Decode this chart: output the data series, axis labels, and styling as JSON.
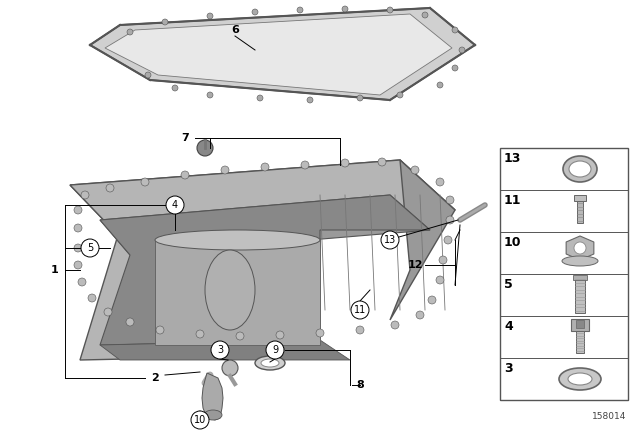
{
  "bg_color": "#ffffff",
  "diagram_id": "158014",
  "sidebar_items": [
    {
      "num": "13",
      "shape": "thin_ring"
    },
    {
      "num": "11",
      "shape": "long_bolt"
    },
    {
      "num": "10",
      "shape": "flange_nut"
    },
    {
      "num": "5",
      "shape": "stud_bolt"
    },
    {
      "num": "4",
      "shape": "hex_bolt"
    },
    {
      "num": "3",
      "shape": "flat_washer"
    }
  ],
  "pan_color_top": "#b0b0b0",
  "pan_color_front": "#9a9a9a",
  "pan_color_right": "#888888",
  "pan_color_inside": "#787878",
  "gasket_color": "#888888",
  "part_gray": "#aaaaaa",
  "dark_gray": "#666666",
  "label_nums_circled": [
    "3",
    "4",
    "5",
    "9",
    "10",
    "11",
    "13"
  ],
  "label_nums_plain": [
    "1",
    "2",
    "6",
    "7",
    "8",
    "12"
  ]
}
